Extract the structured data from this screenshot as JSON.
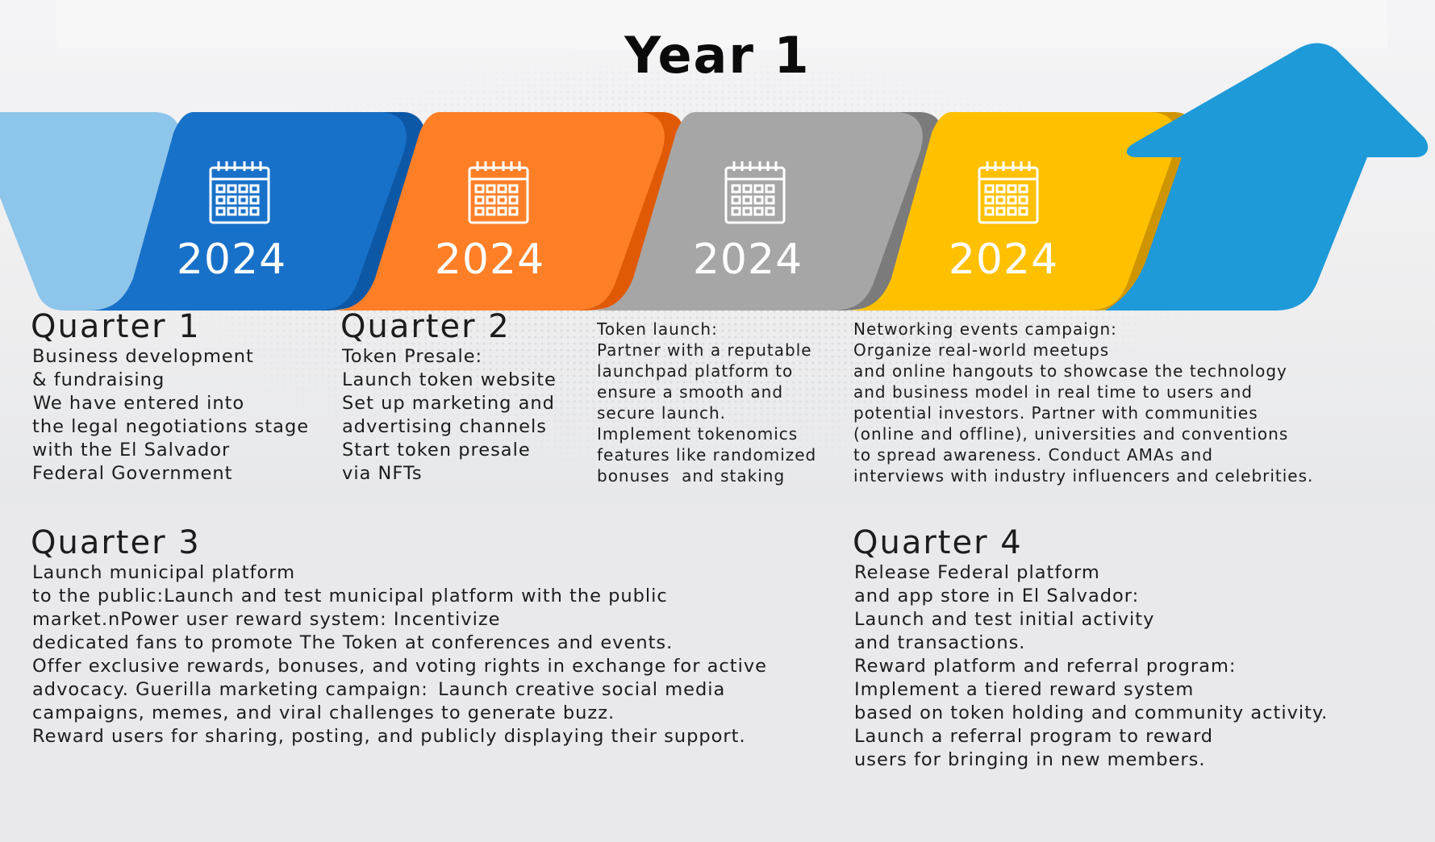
{
  "title": "Year 1",
  "colors": {
    "light_blue": "#8ec5ea",
    "blue": "#1871c9",
    "blue_dark": "#0d58a6",
    "orange": "#ff7f27",
    "orange_dark": "#e05a06",
    "gray": "#a6a6a6",
    "gray_dark": "#7b7b7b",
    "yellow": "#ffc000",
    "yellow_dark": "#cf9500",
    "arrow": "#1e9ad9"
  },
  "segments": [
    {
      "year": "2024",
      "icon": "calendar-icon"
    },
    {
      "year": "2024",
      "icon": "calendar-icon"
    },
    {
      "year": "2024",
      "icon": "calendar-icon"
    },
    {
      "year": "2024",
      "icon": "calendar-icon"
    }
  ],
  "q1": {
    "heading": "Quarter 1",
    "body": "Business development\n& fundraising\n\u0014We have entered into\nthe legal negotiations stage\nwith the El Salvador\nFederal Government"
  },
  "q2": {
    "heading": "Quarter 2",
    "body": "Token Presale:\nLaunch token website\nSet up marketing and\nadvertising channels\nStart token presale\nvia NFTs"
  },
  "token_launch": {
    "body": "Token launch:\nPartner with a reputable\nlaunchpad platform to\nensure a smooth and\nsecure launch.\nImplement tokenomics\nfeatures like randomized\nbonuses  and staking"
  },
  "networking": {
    "body": "Networking events campaign:\nOrganize real-world meetups\nand online hangouts to showcase the technology\nand business model in real time to users and\npotential investors. Partner with communities\n(online and offline), universities and conventions\nto spread awareness. Conduct AMAs and\ninterviews with industry influencers and celebrities."
  },
  "q3": {
    "heading": "Quarter 3",
    "body": "Launch municipal platform\nto the public:Launch and test municipal platform with the public\nmarket.nPower user reward system: Incentivize\ndedicated fans to promote The Token at conferences and events.\nOffer exclusive rewards, bonuses, and voting rights in exchange for active\nadvocacy. Guerilla marketing campaign: Launch creative social media\ncampaigns, memes, and viral challenges to generate buzz.\nReward users for sharing, posting, and publicly displaying their support."
  },
  "q4": {
    "heading": "Quarter 4",
    "body": "Release Federal platform\nand app store in El Salvador:\nLaunch and test initial activity\nand transactions.\nReward platform and referral program:\nImplement a tiered reward system\nbased on token holding and community activity.\nLaunch a referral program to reward\nusers for bringing in new members."
  }
}
